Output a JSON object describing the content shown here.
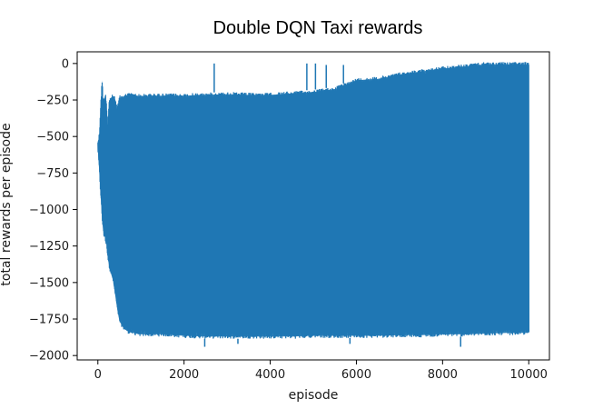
{
  "page": {
    "title": "Double DQN Taxi rewards"
  },
  "colors": {
    "series": "#1f77b4",
    "axes": "#000000",
    "background": "#ffffff"
  },
  "chart_data": {
    "type": "line",
    "title": "Double DQN Taxi rewards",
    "xlabel": "episode",
    "ylabel": "total rewards per episode",
    "xlim": [
      -480,
      10480
    ],
    "ylim": [
      -2030,
      80
    ],
    "grid": false,
    "legend": "none",
    "x_ticks": [
      0,
      2000,
      4000,
      6000,
      8000,
      10000
    ],
    "x_tick_labels": [
      "0",
      "2000",
      "4000",
      "6000",
      "8000",
      "10000"
    ],
    "y_ticks": [
      0,
      -250,
      -500,
      -750,
      -1000,
      -1250,
      -1500,
      -1750,
      -2000
    ],
    "y_tick_labels": [
      "0",
      "−250",
      "−500",
      "−750",
      "−1000",
      "−1250",
      "−1500",
      "−1750",
      "−2000"
    ],
    "series": [
      {
        "x": [
          0,
          20,
          40,
          60,
          80,
          100,
          120,
          140,
          160,
          180,
          200,
          230,
          260,
          300,
          350,
          400,
          450,
          500,
          600,
          700,
          800,
          1000,
          1200,
          1500,
          2000,
          2500,
          3000,
          3500,
          4000,
          4500,
          5000,
          5500,
          6000,
          6500,
          7000,
          7500,
          8000,
          8500,
          9000,
          9500,
          10000
        ],
        "upper": [
          -520,
          -500,
          -450,
          -300,
          -200,
          -100,
          -220,
          -250,
          -210,
          -200,
          -260,
          -420,
          -250,
          -220,
          -210,
          -230,
          -300,
          -220,
          -210,
          -200,
          -200,
          -210,
          -205,
          -205,
          -205,
          -200,
          -195,
          -200,
          -200,
          -190,
          -180,
          -160,
          -100,
          -90,
          -60,
          -40,
          -20,
          -5,
          10,
          10,
          10
        ],
        "lower": [
          -620,
          -700,
          -800,
          -900,
          -1000,
          -1100,
          -1150,
          -1200,
          -1200,
          -1250,
          -1250,
          -1350,
          -1400,
          -1450,
          -1500,
          -1600,
          -1700,
          -1780,
          -1830,
          -1850,
          -1860,
          -1870,
          -1870,
          -1870,
          -1880,
          -1885,
          -1885,
          -1885,
          -1885,
          -1885,
          -1880,
          -1880,
          -1880,
          -1880,
          -1875,
          -1875,
          -1870,
          -1870,
          -1865,
          -1860,
          -1860
        ],
        "spikes_low": [
          {
            "x": 2480,
            "y": -1940
          },
          {
            "x": 3250,
            "y": -1920
          },
          {
            "x": 5850,
            "y": -1920
          },
          {
            "x": 8420,
            "y": -1940
          }
        ],
        "spikes_high": [
          {
            "x": 2700,
            "y": 0
          },
          {
            "x": 4850,
            "y": 0
          },
          {
            "x": 5050,
            "y": 0
          },
          {
            "x": 5300,
            "y": -10
          },
          {
            "x": 5700,
            "y": -10
          }
        ]
      }
    ]
  }
}
